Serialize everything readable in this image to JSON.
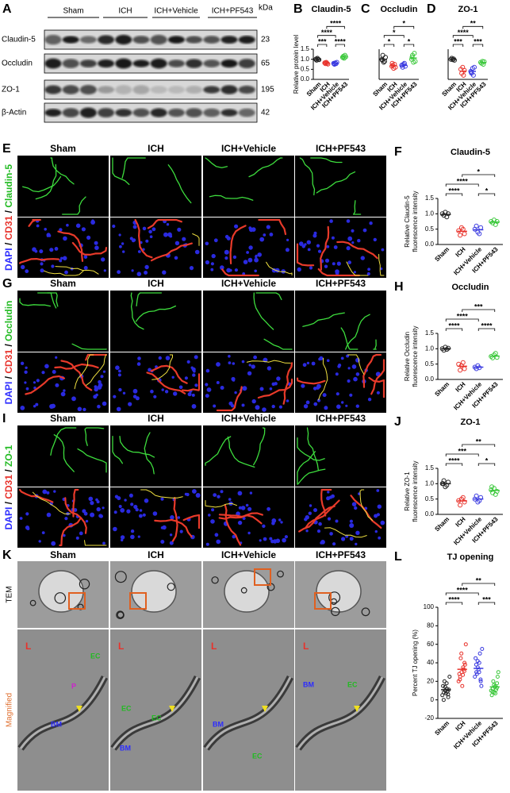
{
  "blot": {
    "panel": "A",
    "groups": [
      "Sham",
      "ICH",
      "ICH+Vehicle",
      "ICH+PF543"
    ],
    "unit": "kDa",
    "rows": [
      {
        "label": "Claudin-5",
        "kda": 23
      },
      {
        "label": "Occludin",
        "kda": 65
      },
      {
        "label": "ZO-1",
        "kda": 195
      },
      {
        "label": "β-Actin",
        "kda": 42
      }
    ]
  },
  "staining": [
    {
      "panel": "E",
      "columns": [
        "Sham",
        "ICH",
        "ICH+Vehicle",
        "ICH+PF543"
      ],
      "channels": [
        {
          "text": "DAPI",
          "color": "#2b2bff"
        },
        {
          "text": " / ",
          "color": "#000000"
        },
        {
          "text": "CD31",
          "color": "#e8322b"
        },
        {
          "text": " / ",
          "color": "#000000"
        },
        {
          "text": "Claudin-5",
          "color": "#22bb22"
        }
      ]
    },
    {
      "panel": "G",
      "columns": [
        "Sham",
        "ICH",
        "ICH+Vehicle",
        "ICH+PF543"
      ],
      "channels": [
        {
          "text": "DAPI",
          "color": "#2b2bff"
        },
        {
          "text": " / ",
          "color": "#000000"
        },
        {
          "text": "CD31",
          "color": "#e8322b"
        },
        {
          "text": " / ",
          "color": "#000000"
        },
        {
          "text": "Occludin",
          "color": "#22bb22"
        }
      ]
    },
    {
      "panel": "I",
      "columns": [
        "Sham",
        "ICH",
        "ICH+Vehicle",
        "ICH+PF543"
      ],
      "channels": [
        {
          "text": "DAPI",
          "color": "#2b2bff"
        },
        {
          "text": " / ",
          "color": "#000000"
        },
        {
          "text": "CD31",
          "color": "#e8322b"
        },
        {
          "text": " / ",
          "color": "#000000"
        },
        {
          "text": "ZO-1",
          "color": "#22bb22"
        }
      ]
    }
  ],
  "tem": {
    "panel": "K",
    "columns": [
      "Sham",
      "ICH",
      "ICH+Vehicle",
      "ICH+PF543"
    ],
    "rows": [
      {
        "text": "TEM",
        "color": "#000000"
      },
      {
        "text": "Magnified",
        "color": "#e07030"
      }
    ],
    "magnified_labels": [
      [
        {
          "text": "L",
          "color": "#e8322b"
        },
        {
          "text": "EC",
          "color": "#22bb22"
        },
        {
          "text": "P",
          "color": "#cc22cc"
        },
        {
          "text": "BM",
          "color": "#2b2bff"
        }
      ],
      [
        {
          "text": "L",
          "color": "#e8322b"
        },
        {
          "text": "EC",
          "color": "#22bb22"
        },
        {
          "text": "EC",
          "color": "#22bb22"
        },
        {
          "text": "BM",
          "color": "#2b2bff"
        }
      ],
      [
        {
          "text": "L",
          "color": "#e8322b"
        },
        {
          "text": "BM",
          "color": "#2b2bff"
        },
        {
          "text": "EC",
          "color": "#22bb22"
        }
      ],
      [
        {
          "text": "L",
          "color": "#e8322b"
        },
        {
          "text": "BM",
          "color": "#2b2bff"
        },
        {
          "text": "EC",
          "color": "#22bb22"
        }
      ]
    ]
  },
  "chart_data": [
    {
      "type": "dotplot",
      "panel": "B",
      "title": "Claudin-5",
      "ylabel": "Relative protein level",
      "categories": [
        "Sham",
        "ICH",
        "ICH+Vehicle",
        "ICH+PF543"
      ],
      "colors": [
        "#222222",
        "#e8322b",
        "#3a3ae0",
        "#3cc83c"
      ],
      "values": [
        [
          1.0,
          0.95,
          1.05,
          1.0,
          0.98,
          1.02
        ],
        [
          0.82,
          0.78,
          0.85,
          0.8,
          0.76,
          0.83
        ],
        [
          0.8,
          0.75,
          0.82,
          0.78,
          0.85,
          0.77
        ],
        [
          1.1,
          1.15,
          1.05,
          1.2,
          1.12,
          1.08
        ]
      ],
      "means": [
        1.0,
        0.81,
        0.8,
        1.12
      ],
      "ylim": [
        0,
        1.5
      ],
      "yticks": [
        {
          "value": 0,
          "label": "0.0"
        },
        {
          "value": 0.5,
          "label": "0.5"
        },
        {
          "value": 1,
          "label": "1.0"
        },
        {
          "value": 1.5,
          "label": "1.5"
        }
      ],
      "significance": [
        {
          "pair": [
            0,
            1
          ],
          "label": "***"
        },
        {
          "pair": [
            2,
            3
          ],
          "label": "****"
        },
        {
          "pair": [
            0,
            2
          ],
          "label": "****"
        },
        {
          "pair": [
            1,
            3
          ],
          "label": "****"
        }
      ]
    },
    {
      "type": "dotplot",
      "panel": "C",
      "title": "Occludin",
      "categories": [
        "Sham",
        "ICH",
        "ICH+Vehicle",
        "ICH+PF543"
      ],
      "colors": [
        "#222222",
        "#e8322b",
        "#3a3ae0",
        "#3cc83c"
      ],
      "values": [
        [
          1.0,
          1.2,
          0.85,
          0.9,
          1.1,
          0.95
        ],
        [
          0.65,
          0.7,
          0.55,
          0.75,
          0.6,
          0.8
        ],
        [
          0.7,
          0.6,
          0.75,
          0.8,
          0.65,
          0.72
        ],
        [
          1.0,
          1.2,
          0.85,
          1.3,
          0.9,
          1.1
        ]
      ],
      "means": [
        1.0,
        0.68,
        0.7,
        1.06
      ],
      "ylim": [
        0,
        1.5
      ],
      "significance": [
        {
          "pair": [
            0,
            1
          ],
          "label": "*"
        },
        {
          "pair": [
            2,
            3
          ],
          "label": "*"
        },
        {
          "pair": [
            0,
            2
          ],
          "label": "*"
        },
        {
          "pair": [
            1,
            3
          ],
          "label": "*"
        }
      ]
    },
    {
      "type": "dotplot",
      "panel": "D",
      "title": "ZO-1",
      "categories": [
        "Sham",
        "ICH",
        "ICH+Vehicle",
        "ICH+PF543"
      ],
      "colors": [
        "#222222",
        "#e8322b",
        "#3a3ae0",
        "#3cc83c"
      ],
      "values": [
        [
          1.0,
          1.05,
          0.98,
          1.02,
          0.95
        ],
        [
          0.5,
          0.3,
          0.6,
          0.2,
          0.45
        ],
        [
          0.4,
          0.3,
          0.55,
          0.2,
          0.6,
          0.35
        ],
        [
          0.85,
          0.8,
          0.9,
          0.75,
          0.88
        ]
      ],
      "means": [
        1.0,
        0.41,
        0.4,
        0.84
      ],
      "ylim": [
        0,
        1.5
      ],
      "significance": [
        {
          "pair": [
            0,
            1
          ],
          "label": "***"
        },
        {
          "pair": [
            2,
            3
          ],
          "label": "***"
        },
        {
          "pair": [
            0,
            2
          ],
          "label": "****"
        },
        {
          "pair": [
            1,
            3
          ],
          "label": "**"
        }
      ]
    },
    {
      "type": "dotplot",
      "panel": "F",
      "title": "Claudin-5",
      "ylabel": [
        "Relative Claudin-5",
        "fluorescence intensity"
      ],
      "categories": [
        "Sham",
        "ICH",
        "ICH+Vehicle",
        "ICH+PF543"
      ],
      "colors": [
        "#222222",
        "#e8322b",
        "#3a3ae0",
        "#3cc83c"
      ],
      "values": [
        [
          1.0,
          0.95,
          1.05,
          0.9,
          1.0
        ],
        [
          0.45,
          0.3,
          0.55,
          0.5,
          0.35
        ],
        [
          0.5,
          0.6,
          0.4,
          0.35,
          0.55
        ],
        [
          0.75,
          0.7,
          0.8,
          0.65,
          0.75
        ]
      ],
      "means": [
        0.98,
        0.43,
        0.48,
        0.73
      ],
      "ylim": [
        0,
        1.5
      ],
      "yticks": [
        {
          "value": 0,
          "label": "0.0"
        },
        {
          "value": 0.5,
          "label": "0.5"
        },
        {
          "value": 1,
          "label": "1.0"
        },
        {
          "value": 1.5,
          "label": "1.5"
        }
      ],
      "significance": [
        {
          "pair": [
            0,
            1
          ],
          "label": "****"
        },
        {
          "pair": [
            2,
            3
          ],
          "label": "*"
        },
        {
          "pair": [
            0,
            2
          ],
          "label": "****"
        },
        {
          "pair": [
            1,
            3
          ],
          "label": "*"
        }
      ]
    },
    {
      "type": "dotplot",
      "panel": "H",
      "title": "Occludin",
      "ylabel": [
        "Relative Occludin",
        "fluorescence intensity"
      ],
      "categories": [
        "Sham",
        "ICH",
        "ICH+Vehicle",
        "ICH+PF543"
      ],
      "colors": [
        "#222222",
        "#e8322b",
        "#3a3ae0",
        "#3cc83c"
      ],
      "values": [
        [
          1.0,
          0.95,
          1.05,
          0.98,
          1.02
        ],
        [
          0.5,
          0.3,
          0.45,
          0.55,
          0.35
        ],
        [
          0.4,
          0.35,
          0.45,
          0.38
        ],
        [
          0.75,
          0.7,
          0.8,
          0.85,
          0.72
        ]
      ],
      "means": [
        1.0,
        0.43,
        0.4,
        0.76
      ],
      "ylim": [
        0,
        1.5
      ],
      "yticks": [
        {
          "value": 0,
          "label": "0.0"
        },
        {
          "value": 0.5,
          "label": "0.5"
        },
        {
          "value": 1,
          "label": "1.0"
        },
        {
          "value": 1.5,
          "label": "1.5"
        }
      ],
      "significance": [
        {
          "pair": [
            0,
            1
          ],
          "label": "****"
        },
        {
          "pair": [
            2,
            3
          ],
          "label": "****"
        },
        {
          "pair": [
            0,
            2
          ],
          "label": "****"
        },
        {
          "pair": [
            1,
            3
          ],
          "label": "***"
        }
      ]
    },
    {
      "type": "dotplot",
      "panel": "J",
      "title": "ZO-1",
      "ylabel": [
        "Relative ZO-1",
        "fluorescence intensity"
      ],
      "categories": [
        "Sham",
        "ICH",
        "ICH+Vehicle",
        "ICH+PF543"
      ],
      "colors": [
        "#222222",
        "#e8322b",
        "#3a3ae0",
        "#3cc83c"
      ],
      "values": [
        [
          1.0,
          1.1,
          0.9,
          0.95,
          1.05,
          1.0
        ],
        [
          0.45,
          0.3,
          0.5,
          0.55,
          0.4
        ],
        [
          0.5,
          0.6,
          0.4,
          0.45,
          0.55
        ],
        [
          0.8,
          0.7,
          0.85,
          0.65,
          0.75,
          0.9
        ]
      ],
      "means": [
        1.0,
        0.44,
        0.5,
        0.78
      ],
      "ylim": [
        0,
        1.5
      ],
      "yticks": [
        {
          "value": 0,
          "label": "0.0"
        },
        {
          "value": 0.5,
          "label": "0.5"
        },
        {
          "value": 1,
          "label": "1.0"
        },
        {
          "value": 1.5,
          "label": "1.5"
        }
      ],
      "significance": [
        {
          "pair": [
            0,
            1
          ],
          "label": "****"
        },
        {
          "pair": [
            2,
            3
          ],
          "label": "*"
        },
        {
          "pair": [
            0,
            2
          ],
          "label": "***"
        },
        {
          "pair": [
            1,
            3
          ],
          "label": "**"
        }
      ]
    },
    {
      "type": "dotplot",
      "panel": "L",
      "title": "TJ opening",
      "ylabel": "Percent TJ opening (%)",
      "categories": [
        "Sham",
        "ICH",
        "ICH+Vehicle",
        "ICH+PF543"
      ],
      "colors": [
        "#222222",
        "#e8322b",
        "#3a3ae0",
        "#3cc83c"
      ],
      "values": [
        [
          5,
          8,
          10,
          12,
          3,
          15,
          20,
          7,
          9,
          11,
          0,
          14,
          18,
          6,
          25
        ],
        [
          20,
          25,
          30,
          35,
          40,
          28,
          45,
          15,
          33,
          38,
          22,
          50,
          27,
          31,
          60
        ],
        [
          25,
          30,
          35,
          40,
          20,
          45,
          28,
          33,
          50,
          15,
          38,
          42,
          30,
          22,
          55
        ],
        [
          10,
          12,
          8,
          15,
          18,
          5,
          20,
          14,
          11,
          25,
          9,
          16,
          7,
          13,
          30
        ]
      ],
      "means": [
        11,
        33,
        34,
        14
      ],
      "ylim": [
        -20,
        100
      ],
      "yticks": [
        -20,
        0,
        20,
        40,
        60,
        80,
        100
      ],
      "significance": [
        {
          "pair": [
            0,
            1
          ],
          "label": "****"
        },
        {
          "pair": [
            2,
            3
          ],
          "label": "***"
        },
        {
          "pair": [
            0,
            2
          ],
          "label": "****"
        },
        {
          "pair": [
            1,
            3
          ],
          "label": "**"
        }
      ]
    }
  ]
}
